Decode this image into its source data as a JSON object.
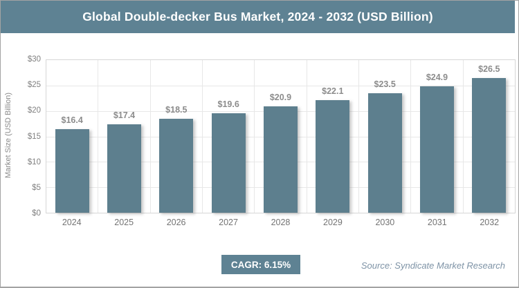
{
  "header": {
    "title": "Global Double-decker Bus Market, 2024 - 2032 (USD Billion)"
  },
  "chart_data": {
    "type": "bar",
    "title": "Global Double-decker Bus Market, 2024 - 2032 (USD Billion)",
    "categories": [
      "2024",
      "2025",
      "2026",
      "2027",
      "2028",
      "2029",
      "2030",
      "2031",
      "2032"
    ],
    "values": [
      16.4,
      17.4,
      18.5,
      19.6,
      20.9,
      22.1,
      23.5,
      24.9,
      26.5
    ],
    "value_labels": [
      "$16.4",
      "$17.4",
      "$18.5",
      "$19.6",
      "$20.9",
      "$22.1",
      "$23.5",
      "$24.9",
      "$26.5"
    ],
    "xlabel": "",
    "ylabel": "Market Size (USD Billion)",
    "ylim": [
      0,
      30
    ],
    "ytick_step": 5,
    "ytick_labels": [
      "$0",
      "$5",
      "$10",
      "$15",
      "$20",
      "$25",
      "$30"
    ],
    "grid": true,
    "legend": "none",
    "bar_color": "#5d7f8e"
  },
  "footer": {
    "cagr_label": "CAGR: 6.15%",
    "source": "Source: Syndicate Market Research"
  },
  "colors": {
    "accent": "#5e8293",
    "bar": "#5d7f8e",
    "label_gray": "#8c8c8c",
    "axis_gray": "#808080"
  }
}
